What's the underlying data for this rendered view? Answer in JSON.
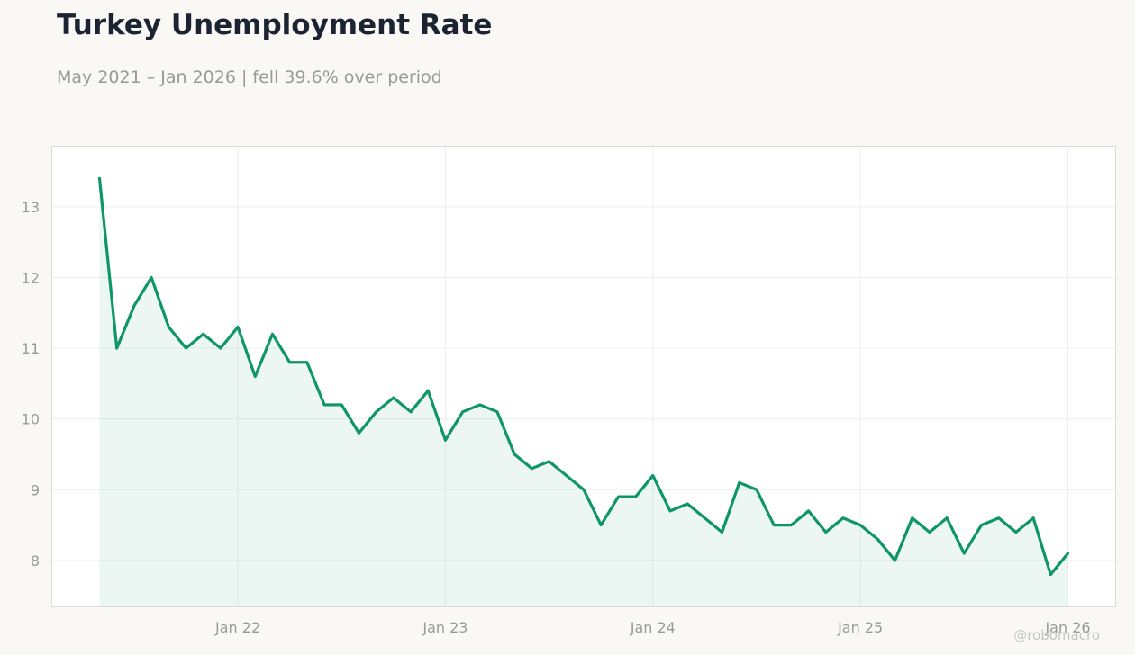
{
  "header": {
    "title": "Turkey Unemployment Rate",
    "subtitle": "May 2021 – Jan 2026 | fell 39.6% over period"
  },
  "watermark": "@robomacro",
  "colors": {
    "line": "#0f956a",
    "fill": "#0f956a",
    "background": "#f9f8f4",
    "plot_background": "#ffffff",
    "grid": "#ecefef"
  },
  "chart_data": {
    "type": "area",
    "title": "Turkey Unemployment Rate",
    "subtitle": "May 2021 – Jan 2026 | fell 39.6% over period",
    "xlabel": "",
    "ylabel": "",
    "x_start": "2021-05",
    "x_end": "2026-01",
    "ylim": [
      7.35,
      13.85
    ],
    "y_ticks": [
      8,
      9,
      10,
      11,
      12,
      13
    ],
    "x_ticks": [
      {
        "label": "Jan 22",
        "date": "2022-01"
      },
      {
        "label": "Jan 23",
        "date": "2023-01"
      },
      {
        "label": "Jan 24",
        "date": "2024-01"
      },
      {
        "label": "Jan 25",
        "date": "2025-01"
      },
      {
        "label": "Jan 26",
        "date": "2026-01"
      }
    ],
    "grid": true,
    "legend": "none",
    "series": [
      {
        "dates": [
          "2021-05",
          "2021-06",
          "2021-07",
          "2021-08",
          "2021-09",
          "2021-10",
          "2021-11",
          "2021-12",
          "2022-01",
          "2022-02",
          "2022-03",
          "2022-04",
          "2022-05",
          "2022-06",
          "2022-07",
          "2022-08",
          "2022-09",
          "2022-10",
          "2022-11",
          "2022-12",
          "2023-01",
          "2023-02",
          "2023-03",
          "2023-04",
          "2023-05",
          "2023-06",
          "2023-07",
          "2023-08",
          "2023-09",
          "2023-10",
          "2023-11",
          "2023-12",
          "2024-01",
          "2024-02",
          "2024-03",
          "2024-04",
          "2024-05",
          "2024-06",
          "2024-07",
          "2024-08",
          "2024-09",
          "2024-10",
          "2024-11",
          "2024-12",
          "2025-01",
          "2025-02",
          "2025-03",
          "2025-04",
          "2025-05",
          "2025-06",
          "2025-07",
          "2025-08",
          "2025-09",
          "2025-10",
          "2025-11",
          "2025-12",
          "2026-01"
        ],
        "values": [
          13.4,
          11.0,
          11.6,
          12.0,
          11.3,
          11.0,
          11.2,
          11.0,
          11.3,
          10.6,
          11.2,
          10.8,
          10.8,
          10.2,
          10.2,
          9.8,
          10.1,
          10.3,
          10.1,
          10.4,
          9.7,
          10.1,
          10.2,
          10.1,
          9.5,
          9.3,
          9.4,
          9.2,
          9.0,
          8.5,
          8.9,
          8.9,
          9.2,
          8.7,
          8.8,
          8.6,
          8.4,
          9.1,
          9.0,
          8.5,
          8.5,
          8.7,
          8.4,
          8.6,
          8.5,
          8.3,
          8.0,
          8.6,
          8.4,
          8.6,
          8.1,
          8.5,
          8.6,
          8.4,
          8.6,
          7.8,
          8.1
        ]
      }
    ]
  }
}
